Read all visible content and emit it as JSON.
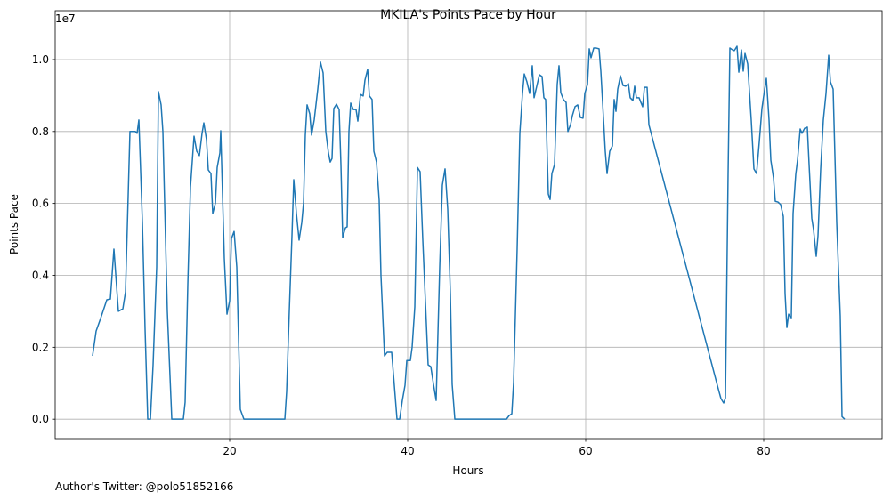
{
  "chart_data": {
    "type": "line",
    "title": "MKILA's Points Pace by Hour",
    "xlabel": "Hours",
    "ylabel": "Points Pace",
    "offset_text": "1e7",
    "footer": "Author's Twitter: @polo51852166",
    "grid": true,
    "color": "#1f77b4",
    "xlim": [
      0.4,
      93.3
    ],
    "ylim": [
      -0.054,
      1.136
    ],
    "xticks": [
      20,
      40,
      60,
      80
    ],
    "yticks": [
      {
        "value": 0,
        "label": "0.0"
      },
      {
        "value": 0.2,
        "label": "0.2"
      },
      {
        "value": 0.4,
        "label": "0.4"
      },
      {
        "value": 0.6,
        "label": "0.6"
      },
      {
        "value": 0.8,
        "label": "0.8"
      },
      {
        "value": 1.0,
        "label": "1.0"
      }
    ],
    "x": [
      4.6,
      5.0,
      5.5,
      6.2,
      6.6,
      7.0,
      7.5,
      8.0,
      8.3,
      8.8,
      9.1,
      9.4,
      9.6,
      9.8,
      10.2,
      10.5,
      10.8,
      11.1,
      11.4,
      11.8,
      12.0,
      12.3,
      12.5,
      13.0,
      13.5,
      14.2,
      14.8,
      15.0,
      15.3,
      15.6,
      16.0,
      16.3,
      16.6,
      16.9,
      17.1,
      17.4,
      17.6,
      17.9,
      18.1,
      18.4,
      18.6,
      18.9,
      19.0,
      19.4,
      19.7,
      20.0,
      20.2,
      20.5,
      20.8,
      21.2,
      21.6,
      26.2,
      26.4,
      26.7,
      27.0,
      27.2,
      27.5,
      27.8,
      28.1,
      28.3,
      28.5,
      28.7,
      29.0,
      29.2,
      29.5,
      29.9,
      30.2,
      30.5,
      30.8,
      31.1,
      31.3,
      31.5,
      31.7,
      32.0,
      32.3,
      32.5,
      32.7,
      33.0,
      33.2,
      33.4,
      33.6,
      33.9,
      34.2,
      34.4,
      34.7,
      35.0,
      35.2,
      35.5,
      35.7,
      36.0,
      36.2,
      36.5,
      36.8,
      37.0,
      37.4,
      37.7,
      38.2,
      38.5,
      38.8,
      39.1,
      39.4,
      39.7,
      39.9,
      40.3,
      40.5,
      40.8,
      41.1,
      41.4,
      41.7,
      42.0,
      42.3,
      42.6,
      42.9,
      43.2,
      43.6,
      43.9,
      44.2,
      44.5,
      44.8,
      45.0,
      45.3,
      51.1,
      51.4,
      51.7,
      51.9,
      52.3,
      52.6,
      52.9,
      53.1,
      53.4,
      53.7,
      54.0,
      54.2,
      54.5,
      54.8,
      55.1,
      55.3,
      55.5,
      55.8,
      56.0,
      56.2,
      56.5,
      56.8,
      57.0,
      57.2,
      57.5,
      57.8,
      58.0,
      58.3,
      58.5,
      58.8,
      59.1,
      59.4,
      59.7,
      59.9,
      60.2,
      60.4,
      60.6,
      60.9,
      61.2,
      61.5,
      61.7,
      61.9,
      62.2,
      62.4,
      62.7,
      63.0,
      63.2,
      63.4,
      63.6,
      63.9,
      64.2,
      64.5,
      64.8,
      65.0,
      65.3,
      65.5,
      65.7,
      66.0,
      66.2,
      66.4,
      66.6,
      66.9,
      67.1,
      74.9,
      75.2,
      75.5,
      75.7,
      76.0,
      76.2,
      76.5,
      76.7,
      77.0,
      77.2,
      77.5,
      77.7,
      77.9,
      78.2,
      78.6,
      78.9,
      79.2,
      79.5,
      79.8,
      80.0,
      80.3,
      80.6,
      80.8,
      81.1,
      81.3,
      81.6,
      81.9,
      82.2,
      82.4,
      82.6,
      82.8,
      83.1,
      83.3,
      83.6,
      83.8,
      84.1,
      84.3,
      84.6,
      84.9,
      85.1,
      85.4,
      85.6,
      85.9,
      86.1,
      86.4,
      86.7,
      87.0,
      87.3,
      87.5,
      87.8,
      88.2,
      88.6,
      88.8,
      89.1
    ],
    "values": [
      0.176,
      0.245,
      0.28,
      0.332,
      0.334,
      0.473,
      0.3,
      0.307,
      0.354,
      0.8,
      0.8,
      0.8,
      0.795,
      0.832,
      0.547,
      0.25,
      0,
      0,
      0.151,
      0.423,
      0.911,
      0.874,
      0.8,
      0.3,
      0,
      0,
      0,
      0.047,
      0.374,
      0.646,
      0.787,
      0.745,
      0.733,
      0.795,
      0.824,
      0.777,
      0.693,
      0.683,
      0.572,
      0.601,
      0.7,
      0.74,
      0.802,
      0.448,
      0.292,
      0.329,
      0.502,
      0.522,
      0.423,
      0.027,
      0,
      0,
      0.077,
      0.3,
      0.51,
      0.666,
      0.572,
      0.498,
      0.547,
      0.601,
      0.79,
      0.874,
      0.849,
      0.79,
      0.832,
      0.918,
      0.993,
      0.963,
      0.8,
      0.74,
      0.715,
      0.725,
      0.864,
      0.876,
      0.861,
      0.708,
      0.505,
      0.532,
      0.535,
      0.8,
      0.879,
      0.861,
      0.861,
      0.829,
      0.903,
      0.899,
      0.943,
      0.973,
      0.899,
      0.889,
      0.745,
      0.715,
      0.609,
      0.399,
      0.176,
      0.186,
      0.186,
      0.094,
      0,
      0,
      0.052,
      0.094,
      0.163,
      0.163,
      0.2,
      0.312,
      0.7,
      0.688,
      0.498,
      0.324,
      0.151,
      0.146,
      0.097,
      0.052,
      0.423,
      0.651,
      0.696,
      0.584,
      0.349,
      0.097,
      0,
      0,
      0.01,
      0.015,
      0.101,
      0.473,
      0.795,
      0.906,
      0.96,
      0.938,
      0.906,
      0.983,
      0.894,
      0.926,
      0.958,
      0.953,
      0.894,
      0.889,
      0.626,
      0.611,
      0.683,
      0.708,
      0.931,
      0.983,
      0.908,
      0.889,
      0.881,
      0.8,
      0.819,
      0.844,
      0.869,
      0.874,
      0.839,
      0.837,
      0.906,
      0.931,
      1.03,
      1.005,
      1.032,
      1.032,
      1.03,
      0.968,
      0.881,
      0.745,
      0.683,
      0.745,
      0.76,
      0.889,
      0.856,
      0.918,
      0.955,
      0.928,
      0.926,
      0.933,
      0.894,
      0.886,
      0.926,
      0.894,
      0.894,
      0.881,
      0.869,
      0.923,
      0.923,
      0.819,
      0.084,
      0.057,
      0.045,
      0.059,
      0.683,
      1.032,
      1.027,
      1.025,
      1.037,
      0.965,
      1.027,
      0.968,
      1.017,
      0.988,
      0.832,
      0.696,
      0.683,
      0.77,
      0.864,
      0.899,
      0.948,
      0.832,
      0.72,
      0.671,
      0.606,
      0.604,
      0.597,
      0.564,
      0.349,
      0.255,
      0.292,
      0.282,
      0.572,
      0.681,
      0.72,
      0.807,
      0.795,
      0.809,
      0.812,
      0.708,
      0.559,
      0.527,
      0.453,
      0.51,
      0.696,
      0.832,
      0.906,
      1.012,
      0.938,
      0.918,
      0.547,
      0.287,
      0.007,
      0
    ]
  }
}
